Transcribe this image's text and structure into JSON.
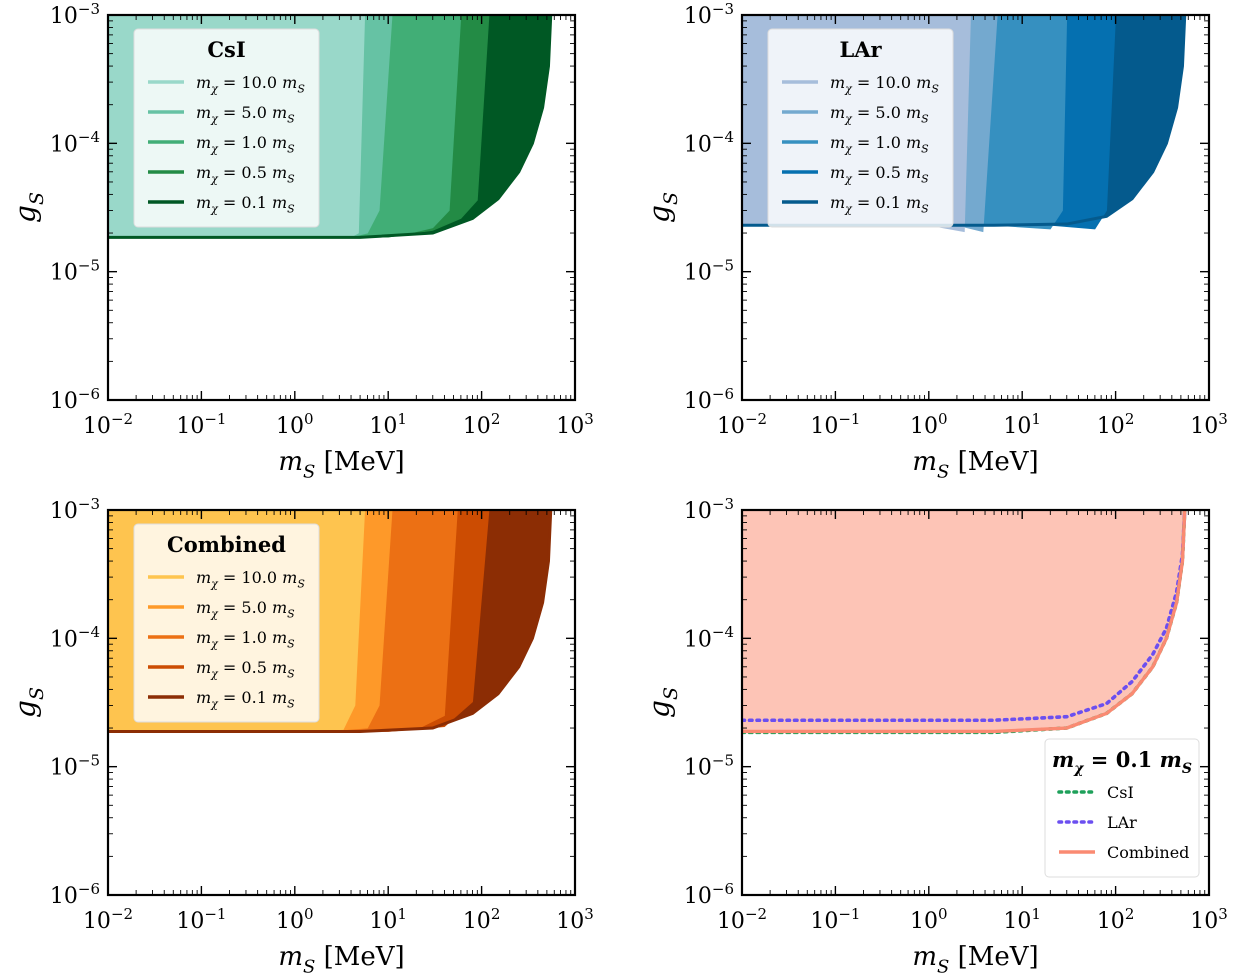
{
  "chart_data": [
    {
      "type": "area",
      "panel": "top-left",
      "xlabel": "m_S [MeV]",
      "ylabel": "g_S",
      "xscale": "log",
      "yscale": "log",
      "xlim": [
        0.01,
        1000
      ],
      "ylim": [
        1e-06,
        0.001
      ],
      "x_ticks": [
        "10^-2",
        "10^-1",
        "10^0",
        "10^1",
        "10^2",
        "10^3"
      ],
      "y_ticks": [
        "10^-6",
        "10^-5",
        "10^-4",
        "10^-3"
      ],
      "legend_title": "CsI",
      "legend_position": "upper-left",
      "series": [
        {
          "name": "m_χ = 10.0 m_S",
          "color": "#99d8c9",
          "x": [
            0.01,
            1,
            4,
            4.8,
            5.6
          ],
          "y": [
            1.85e-05,
            1.85e-05,
            1.86e-05,
            2e-05,
            0.001
          ]
        },
        {
          "name": "m_χ = 5.0 m_S",
          "color": "#66c2a4",
          "x": [
            0.01,
            1,
            4,
            6,
            8,
            11
          ],
          "y": [
            1.85e-05,
            1.85e-05,
            1.86e-05,
            2e-05,
            3e-05,
            0.001
          ]
        },
        {
          "name": "m_χ = 1.0 m_S",
          "color": "#41ae76",
          "x": [
            0.01,
            3,
            15,
            30,
            45,
            60
          ],
          "y": [
            1.85e-05,
            1.85e-05,
            1.95e-05,
            2.2e-05,
            3e-05,
            0.001
          ]
        },
        {
          "name": "m_χ = 0.5 m_S",
          "color": "#238b45",
          "x": [
            0.01,
            10,
            30,
            60,
            90,
            120
          ],
          "y": [
            1.85e-05,
            1.86e-05,
            2.1e-05,
            2.6e-05,
            3.6e-05,
            0.001
          ]
        },
        {
          "name": "m_χ = 0.1 m_S",
          "color": "#005824",
          "x": [
            0.01,
            5,
            30,
            80,
            150,
            250,
            350,
            450,
            520,
            550
          ],
          "y": [
            1.85e-05,
            1.85e-05,
            2e-05,
            2.6e-05,
            3.7e-05,
            6e-05,
            0.0001,
            0.00019,
            0.0004,
            0.001
          ]
        }
      ]
    },
    {
      "type": "area",
      "panel": "top-right",
      "xlabel": "m_S [MeV]",
      "ylabel": "g_S",
      "xscale": "log",
      "yscale": "log",
      "xlim": [
        0.01,
        1000
      ],
      "ylim": [
        1e-06,
        0.001
      ],
      "x_ticks": [
        "10^-2",
        "10^-1",
        "10^0",
        "10^1",
        "10^2",
        "10^3"
      ],
      "y_ticks": [
        "10^-6",
        "10^-5",
        "10^-4",
        "10^-3"
      ],
      "legend_title": "LAr",
      "legend_position": "upper-left",
      "series": [
        {
          "name": "m_χ = 10.0 m_S",
          "color": "#a6bddb",
          "x": [
            0.01,
            1,
            2.4,
            2.8
          ],
          "y": [
            2.3e-05,
            2.3e-05,
            2.05e-05,
            0.001
          ]
        },
        {
          "name": "m_χ = 5.0 m_S",
          "color": "#74a9cf",
          "x": [
            0.01,
            2,
            3.8,
            5.4
          ],
          "y": [
            2.3e-05,
            2.3e-05,
            2.05e-05,
            0.001
          ]
        },
        {
          "name": "m_χ = 1.0 m_S",
          "color": "#3690c0",
          "x": [
            0.01,
            5,
            20,
            27,
            30
          ],
          "y": [
            2.3e-05,
            2.3e-05,
            2.15e-05,
            3e-05,
            0.001
          ]
        },
        {
          "name": "m_χ = 0.5 m_S",
          "color": "#0570b0",
          "x": [
            0.01,
            20,
            60,
            80,
            100
          ],
          "y": [
            2.3e-05,
            2.3e-05,
            2.15e-05,
            3e-05,
            0.001
          ]
        },
        {
          "name": "m_χ = 0.1 m_S",
          "color": "#045a8d",
          "x": [
            0.01,
            5,
            30,
            80,
            150,
            250,
            350,
            450,
            520,
            550
          ],
          "y": [
            2.3e-05,
            2.3e-05,
            2.35e-05,
            2.7e-05,
            3.7e-05,
            6e-05,
            0.0001,
            0.00019,
            0.0004,
            0.001
          ]
        }
      ]
    },
    {
      "type": "area",
      "panel": "bottom-left",
      "xlabel": "m_S [MeV]",
      "ylabel": "g_S",
      "xscale": "log",
      "yscale": "log",
      "xlim": [
        0.01,
        1000
      ],
      "ylim": [
        1e-06,
        0.001
      ],
      "x_ticks": [
        "10^-2",
        "10^-1",
        "10^0",
        "10^1",
        "10^2",
        "10^3"
      ],
      "y_ticks": [
        "10^-6",
        "10^-5",
        "10^-4",
        "10^-3"
      ],
      "legend_title": "Combined",
      "legend_position": "upper-left",
      "series": [
        {
          "name": "m_χ = 10.0 m_S",
          "color": "#fec44f",
          "x": [
            0.01,
            1,
            3.3,
            4.4,
            5.6
          ],
          "y": [
            1.88e-05,
            1.88e-05,
            1.95e-05,
            3e-05,
            0.001
          ]
        },
        {
          "name": "m_χ = 5.0 m_S",
          "color": "#fe9929",
          "x": [
            0.01,
            2,
            6,
            8,
            11
          ],
          "y": [
            1.88e-05,
            1.88e-05,
            2e-05,
            3e-05,
            0.001
          ]
        },
        {
          "name": "m_χ = 1.0 m_S",
          "color": "#ec7014",
          "x": [
            0.01,
            5,
            20,
            40,
            55
          ],
          "y": [
            1.88e-05,
            1.88e-05,
            1.95e-05,
            2.5e-05,
            0.001
          ]
        },
        {
          "name": "m_χ = 0.5 m_S",
          "color": "#cc4c02",
          "x": [
            0.01,
            10,
            40,
            80,
            120
          ],
          "y": [
            1.88e-05,
            1.88e-05,
            2.05e-05,
            3.2e-05,
            0.001
          ]
        },
        {
          "name": "m_χ = 0.1 m_S",
          "color": "#8c2d04",
          "x": [
            0.01,
            5,
            30,
            80,
            150,
            250,
            350,
            450,
            520,
            550
          ],
          "y": [
            1.88e-05,
            1.88e-05,
            2e-05,
            2.6e-05,
            3.7e-05,
            6e-05,
            0.0001,
            0.00019,
            0.0004,
            0.001
          ]
        }
      ]
    },
    {
      "type": "line",
      "panel": "bottom-right",
      "xlabel": "m_S [MeV]",
      "ylabel": "g_S",
      "xscale": "log",
      "yscale": "log",
      "xlim": [
        0.01,
        1000
      ],
      "ylim": [
        1e-06,
        0.001
      ],
      "x_ticks": [
        "10^-2",
        "10^-1",
        "10^0",
        "10^1",
        "10^2",
        "10^3"
      ],
      "y_ticks": [
        "10^-6",
        "10^-5",
        "10^-4",
        "10^-3"
      ],
      "legend_title": "m_χ = 0.1 m_S",
      "legend_position": "lower-right",
      "fill": {
        "color": "#fdc4b6",
        "x": [
          0.01,
          5,
          30,
          80,
          150,
          250,
          350,
          450,
          520,
          550
        ],
        "y": [
          1.88e-05,
          1.88e-05,
          2e-05,
          2.6e-05,
          3.7e-05,
          6e-05,
          0.0001,
          0.00019,
          0.0004,
          0.001
        ]
      },
      "series": [
        {
          "name": "CsI",
          "color": "#1ea05a",
          "style": "dotted",
          "x": [
            0.01,
            5,
            30,
            80,
            150,
            250,
            350,
            450,
            520,
            550
          ],
          "y": [
            1.85e-05,
            1.85e-05,
            2e-05,
            2.6e-05,
            3.7e-05,
            6e-05,
            0.0001,
            0.00019,
            0.0004,
            0.001
          ]
        },
        {
          "name": "LAr",
          "color": "#6b4ff0",
          "style": "dotted",
          "x": [
            0.01,
            5,
            30,
            80,
            150,
            250,
            350,
            450,
            520,
            550
          ],
          "y": [
            2.3e-05,
            2.3e-05,
            2.45e-05,
            3.1e-05,
            4.6e-05,
            7.5e-05,
            0.00012,
            0.00023,
            0.00045,
            0.001
          ]
        },
        {
          "name": "Combined",
          "color": "#fa8a72",
          "style": "solid",
          "x": [
            0.01,
            5,
            30,
            80,
            150,
            250,
            350,
            450,
            520,
            550
          ],
          "y": [
            1.88e-05,
            1.88e-05,
            2e-05,
            2.6e-05,
            3.7e-05,
            6e-05,
            0.0001,
            0.00019,
            0.0004,
            0.001
          ]
        }
      ]
    }
  ]
}
